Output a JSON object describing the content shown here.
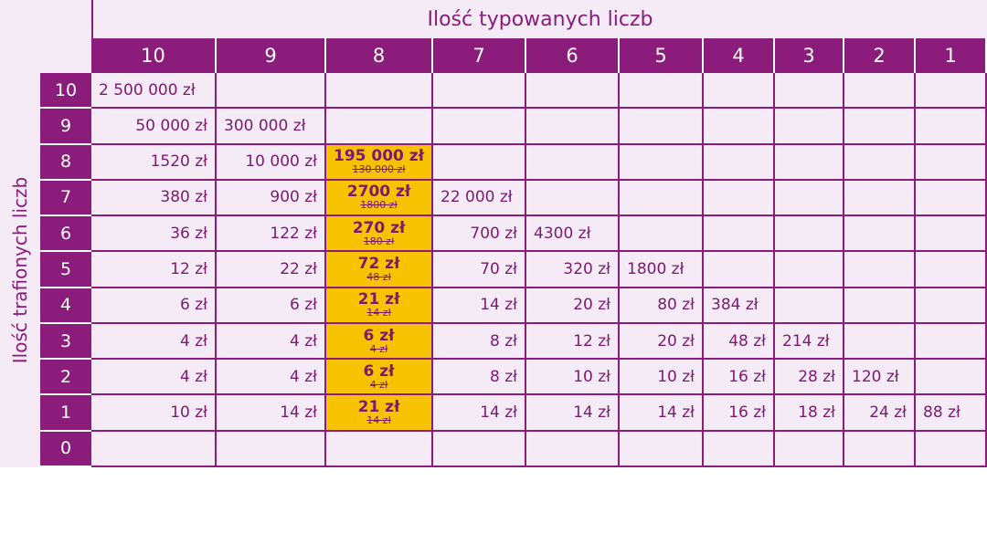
{
  "header": {
    "title": "Ilość typowanych liczb",
    "side_title": "Ilość trafionych liczb"
  },
  "table": {
    "columns": [
      "10",
      "9",
      "8",
      "7",
      "6",
      "5",
      "4",
      "3",
      "2",
      "1"
    ],
    "row_labels": [
      "10",
      "9",
      "8",
      "7",
      "6",
      "5",
      "4",
      "3",
      "2",
      "1",
      "0"
    ],
    "rows": [
      [
        "2 500 000 zł",
        null,
        null,
        null,
        null,
        null,
        null,
        null,
        null,
        null
      ],
      [
        "50 000 zł",
        "300 000 zł",
        null,
        null,
        null,
        null,
        null,
        null,
        null,
        null
      ],
      [
        "1520 zł",
        "10 000 zł",
        {
          "value": "195 000 zł",
          "old": "130 000 zł"
        },
        null,
        null,
        null,
        null,
        null,
        null,
        null
      ],
      [
        "380 zł",
        "900 zł",
        {
          "value": "2700 zł",
          "old": "1800 zł"
        },
        "22 000 zł",
        null,
        null,
        null,
        null,
        null,
        null
      ],
      [
        "36 zł",
        "122 zł",
        {
          "value": "270 zł",
          "old": "180 zł"
        },
        "700 zł",
        "4300 zł",
        null,
        null,
        null,
        null,
        null
      ],
      [
        "12 zł",
        "22 zł",
        {
          "value": "72 zł",
          "old": "48 zł"
        },
        "70 zł",
        "320 zł",
        "1800 zł",
        null,
        null,
        null,
        null
      ],
      [
        "6 zł",
        "6 zł",
        {
          "value": "21 zł",
          "old": "14 zł"
        },
        "14 zł",
        "20 zł",
        "80 zł",
        "384 zł",
        null,
        null,
        null
      ],
      [
        "4 zł",
        "4 zł",
        {
          "value": "6 zł",
          "old": "4 zł"
        },
        "8 zł",
        "12 zł",
        "20 zł",
        "48 zł",
        "214 zł",
        null,
        null
      ],
      [
        "4 zł",
        "4 zł",
        {
          "value": "6 zł",
          "old": "4 zł"
        },
        "8 zł",
        "10 zł",
        "10 zł",
        "16 zł",
        "28 zł",
        "120 zł",
        null
      ],
      [
        "10 zł",
        "14 zł",
        {
          "value": "21 zł",
          "old": "14 zł"
        },
        "14 zł",
        "14 zł",
        "14 zł",
        "16 zł",
        "18 zł",
        "24 zł",
        "88 zł"
      ],
      [
        null,
        null,
        null,
        null,
        null,
        null,
        null,
        null,
        null,
        null
      ]
    ]
  }
}
